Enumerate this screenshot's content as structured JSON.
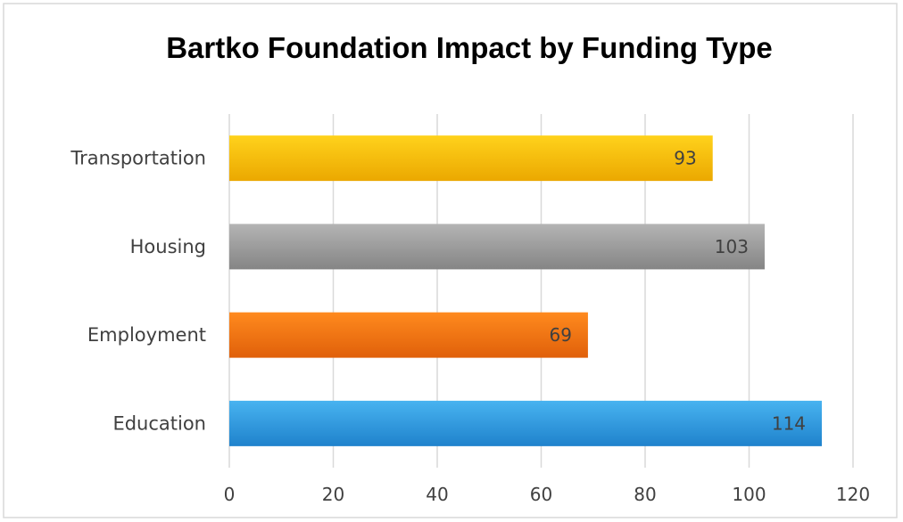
{
  "chart_data": {
    "type": "bar",
    "orientation": "horizontal",
    "title": "Bartko Foundation Impact by Funding Type",
    "xlabel": "",
    "ylabel": "",
    "categories": [
      "Education",
      "Employment",
      "Housing",
      "Transportation"
    ],
    "values": [
      114,
      69,
      103,
      93
    ],
    "data_labels": [
      "114",
      "69",
      "103",
      "93"
    ],
    "bar_colors": [
      "#2e96dc",
      "#f0700c",
      "#9a9a9a",
      "#f5bb00"
    ],
    "xlim": [
      0,
      120
    ],
    "x_ticks": [
      0,
      20,
      40,
      60,
      80,
      100,
      120
    ],
    "x_tick_labels": [
      "0",
      "20",
      "40",
      "60",
      "80",
      "100",
      "120"
    ],
    "grid": "vertical",
    "legend": "none"
  }
}
